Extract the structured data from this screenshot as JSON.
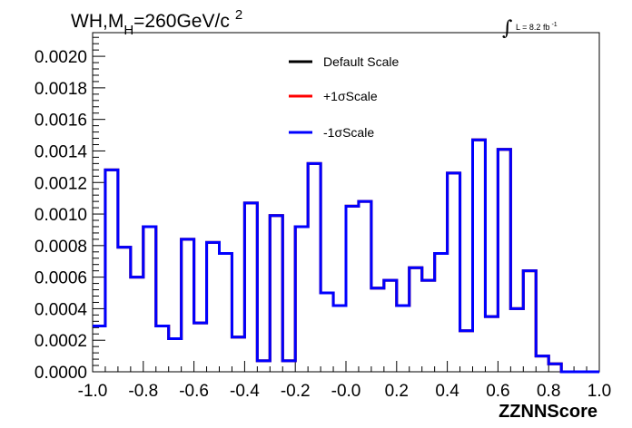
{
  "title": {
    "prefix": "WH,M",
    "subscript": "H",
    "suffix": "=260GeV/c",
    "superscript": "2"
  },
  "lumi": {
    "integral_symbol": "∫",
    "text": "L = 8.2 fb",
    "superscript": "-1"
  },
  "chart_data": {
    "type": "line",
    "style": "step-histogram",
    "xlabel": "ZZNNScore",
    "ylabel": "",
    "xlim": [
      -1.0,
      1.0
    ],
    "ylim": [
      0.0,
      0.00215
    ],
    "grid": false,
    "legend_position": "top-center",
    "bin_edges": [
      -1.0,
      -0.95,
      -0.9,
      -0.85,
      -0.8,
      -0.75,
      -0.7,
      -0.65,
      -0.6,
      -0.55,
      -0.5,
      -0.45,
      -0.4,
      -0.35,
      -0.3,
      -0.25,
      -0.2,
      -0.15,
      -0.1,
      -0.05,
      0.0,
      0.05,
      0.1,
      0.15,
      0.2,
      0.25,
      0.3,
      0.35,
      0.4,
      0.45,
      0.5,
      0.55,
      0.6,
      0.65,
      0.7,
      0.75,
      0.8,
      0.85,
      0.9,
      0.95,
      1.0
    ],
    "x_tick_labels": [
      "-1.0",
      "-0.8",
      "-0.6",
      "-0.4",
      "-0.2",
      "-0.0",
      "0.2",
      "0.4",
      "0.6",
      "0.8",
      "1.0"
    ],
    "x_tick_values": [
      -1.0,
      -0.8,
      -0.6,
      -0.4,
      -0.2,
      0.0,
      0.2,
      0.4,
      0.6,
      0.8,
      1.0
    ],
    "y_tick_labels": [
      "0.0000",
      "0.0002",
      "0.0004",
      "0.0006",
      "0.0008",
      "0.0010",
      "0.0012",
      "0.0014",
      "0.0016",
      "0.0018",
      "0.0020"
    ],
    "y_tick_values": [
      0.0,
      0.0002,
      0.0004,
      0.0006,
      0.0008,
      0.001,
      0.0012,
      0.0014,
      0.0016,
      0.0018,
      0.002
    ],
    "series": [
      {
        "name": "Default Scale",
        "color": "#000000",
        "values": [
          0.00029,
          0.00128,
          0.00079,
          0.0006,
          0.00092,
          0.00029,
          0.00021,
          0.00084,
          0.00031,
          0.00082,
          0.00075,
          0.00022,
          0.00107,
          7e-05,
          0.00099,
          7e-05,
          0.00092,
          0.00132,
          0.0005,
          0.00042,
          0.00105,
          0.00108,
          0.00053,
          0.00058,
          0.00042,
          0.00066,
          0.00058,
          0.00075,
          0.00126,
          0.00026,
          0.00147,
          0.00035,
          0.00141,
          0.0004,
          0.00064,
          0.0001,
          5e-05,
          0.0,
          0.0,
          0.0
        ]
      },
      {
        "name": "+1σScale",
        "color": "#ff0000",
        "values": [
          0.00029,
          0.00128,
          0.00079,
          0.0006,
          0.00092,
          0.00029,
          0.00021,
          0.00084,
          0.00031,
          0.00082,
          0.00075,
          0.00022,
          0.00107,
          7e-05,
          0.00099,
          7e-05,
          0.00092,
          0.00132,
          0.0005,
          0.00042,
          0.00105,
          0.00108,
          0.00053,
          0.00058,
          0.00042,
          0.00066,
          0.00058,
          0.00075,
          0.00126,
          0.00026,
          0.00147,
          0.00035,
          0.00141,
          0.0004,
          0.00064,
          0.0001,
          5e-05,
          0.0,
          0.0,
          0.0
        ]
      },
      {
        "name": "-1σScale",
        "color": "#0000ff",
        "values": [
          0.00029,
          0.00128,
          0.00079,
          0.0006,
          0.00092,
          0.00029,
          0.00021,
          0.00084,
          0.00031,
          0.00082,
          0.00075,
          0.00022,
          0.00107,
          7e-05,
          0.00099,
          7e-05,
          0.00092,
          0.00132,
          0.0005,
          0.00042,
          0.00105,
          0.00108,
          0.00053,
          0.00058,
          0.00042,
          0.00066,
          0.00058,
          0.00075,
          0.00126,
          0.00026,
          0.00147,
          0.00035,
          0.00141,
          0.0004,
          0.00064,
          0.0001,
          5e-05,
          0.0,
          0.0,
          0.0
        ]
      }
    ]
  }
}
